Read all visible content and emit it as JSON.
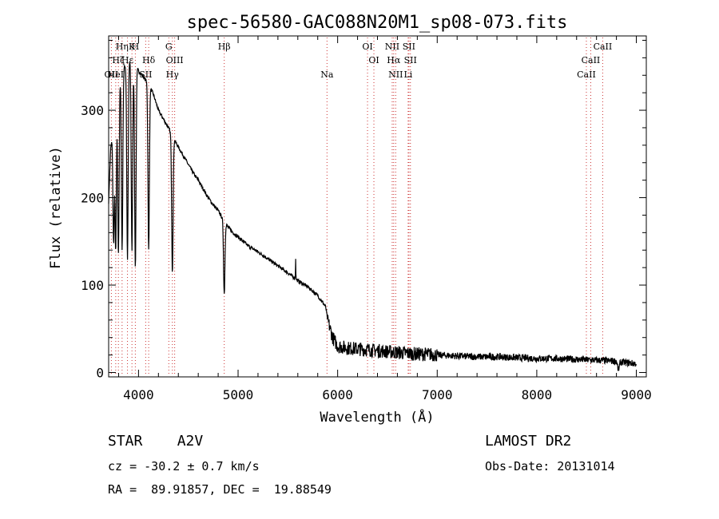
{
  "chart_data": {
    "type": "line",
    "title": "spec-56580-GAC088N20M1_sp08-073.fits",
    "xlabel": "Wavelength (Å)",
    "ylabel": "Flux (relative)",
    "xlim": [
      3700,
      9100
    ],
    "ylim": [
      -5,
      385
    ],
    "x_ticks": [
      4000,
      5000,
      6000,
      7000,
      8000,
      9000
    ],
    "y_ticks": [
      0,
      100,
      200,
      300
    ],
    "x_tick_labels": [
      "4000",
      "5000",
      "6000",
      "7000",
      "8000",
      "9000"
    ],
    "y_tick_labels": [
      "0",
      "100",
      "200",
      "300"
    ],
    "grid": false,
    "series": [
      {
        "x": [
          3700,
          3720,
          3740,
          3760,
          3780,
          3800,
          3830,
          3860,
          3890,
          3920,
          3950,
          3980,
          4000,
          4050,
          4100,
          4150,
          4200,
          4250,
          4300,
          4350,
          4400,
          4450,
          4500,
          4550,
          4600,
          4650,
          4700,
          4750,
          4800,
          4850,
          4900,
          4950,
          5000,
          5100,
          5200,
          5300,
          5400,
          5500,
          5600,
          5700,
          5800,
          5850,
          5880,
          5900,
          5950,
          6000,
          6100,
          6200,
          6300,
          6400,
          6500,
          6600,
          6700,
          6800,
          6900,
          7000,
          7200,
          7400,
          7600,
          7800,
          8000,
          8200,
          8400,
          8600,
          8800,
          8820,
          8840,
          9000
        ],
        "y": [
          195,
          255,
          275,
          300,
          320,
          330,
          345,
          350,
          355,
          358,
          355,
          350,
          345,
          338,
          330,
          318,
          300,
          290,
          280,
          268,
          258,
          248,
          238,
          228,
          220,
          210,
          200,
          192,
          185,
          175,
          166,
          160,
          155,
          145,
          138,
          130,
          122,
          114,
          105,
          98,
          88,
          80,
          75,
          60,
          40,
          30,
          28,
          27,
          26,
          25,
          24,
          23,
          22,
          21,
          21,
          20,
          19,
          18,
          18,
          17,
          16,
          16,
          15,
          14,
          13,
          2,
          12,
          10
        ],
        "color": "#000000"
      }
    ],
    "absorption_dips": [
      {
        "x": 3750,
        "y": 150
      },
      {
        "x": 3771,
        "y": 140
      },
      {
        "x": 3798,
        "y": 135
      },
      {
        "x": 3835,
        "y": 140
      },
      {
        "x": 3889,
        "y": 130
      },
      {
        "x": 3934,
        "y": 140
      },
      {
        "x": 3968,
        "y": 120
      },
      {
        "x": 4102,
        "y": 140
      },
      {
        "x": 4340,
        "y": 115
      },
      {
        "x": 4861,
        "y": 90
      }
    ],
    "emission_spikes": [
      {
        "x": 5577,
        "y": 130
      }
    ],
    "spectral_lines": [
      {
        "label": "Hη",
        "x": 3835,
        "row": 1
      },
      {
        "label": "Hε",
        "x": 3889,
        "row": 2
      },
      {
        "label": "OII",
        "x": 3727,
        "row": 3
      },
      {
        "label": "Hζ",
        "x": 3798,
        "row": 2
      },
      {
        "label": "HeI",
        "x": 3771,
        "row": 3
      },
      {
        "label": "K",
        "x": 3934,
        "row": 1
      },
      {
        "label": "H",
        "x": 3968,
        "row": 1
      },
      {
        "label": "Hδ",
        "x": 4102,
        "row": 2
      },
      {
        "label": "SII",
        "x": 4072,
        "row": 3
      },
      {
        "label": "G",
        "x": 4304,
        "row": 1
      },
      {
        "label": "OIII",
        "x": 4363,
        "row": 2
      },
      {
        "label": "Hγ",
        "x": 4340,
        "row": 3
      },
      {
        "label": "Hβ",
        "x": 4861,
        "row": 1
      },
      {
        "label": "Na",
        "x": 5893,
        "row": 3
      },
      {
        "label": "OI",
        "x": 6300,
        "row": 1
      },
      {
        "label": "OI",
        "x": 6364,
        "row": 2
      },
      {
        "label": "NII",
        "x": 6548,
        "row": 1
      },
      {
        "label": "NII",
        "x": 6583,
        "row": 3
      },
      {
        "label": "Hα",
        "x": 6563,
        "row": 2
      },
      {
        "label": "SII",
        "x": 6716,
        "row": 1
      },
      {
        "label": "SII",
        "x": 6731,
        "row": 2
      },
      {
        "label": "Li",
        "x": 6708,
        "row": 3
      },
      {
        "label": "CaII",
        "x": 8498,
        "row": 3
      },
      {
        "label": "CaII",
        "x": 8542,
        "row": 2
      },
      {
        "label": "CaII",
        "x": 8662,
        "row": 1
      }
    ],
    "line_marker_color": "#cc3333"
  },
  "info": {
    "left_line1": "STAR    A2V",
    "left_line2": "cz = -30.2 ± 0.7 km/s",
    "left_line3": "RA =  89.91857, DEC =  19.88549",
    "right_line1": "LAMOST DR2",
    "right_line2": "Obs-Date: 20131014"
  }
}
